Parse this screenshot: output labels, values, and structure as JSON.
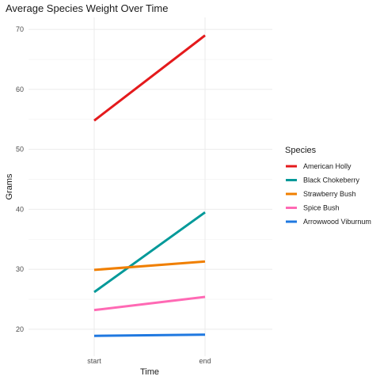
{
  "chart_data": {
    "type": "line",
    "title": "Average Species Weight Over Time",
    "xlabel": "Time",
    "ylabel": "Grams",
    "categories": [
      "start",
      "end"
    ],
    "ylim": [
      15.5,
      72
    ],
    "yticks": [
      20,
      30,
      40,
      50,
      60,
      70
    ],
    "grid": true,
    "legend_title": "Species",
    "legend_position": "right",
    "series": [
      {
        "name": "American Holly",
        "color": "#e41a1c",
        "values": [
          54.8,
          69.0
        ]
      },
      {
        "name": "Black Chokeberry",
        "color": "#009999",
        "values": [
          26.2,
          39.5
        ]
      },
      {
        "name": "Strawberry Bush",
        "color": "#f07f00",
        "values": [
          29.9,
          31.3
        ]
      },
      {
        "name": "Spice Bush",
        "color": "#ff69b4",
        "values": [
          23.2,
          25.4
        ]
      },
      {
        "name": "Arrowwood Viburnum",
        "color": "#1f78e0",
        "values": [
          18.9,
          19.1
        ]
      }
    ]
  }
}
